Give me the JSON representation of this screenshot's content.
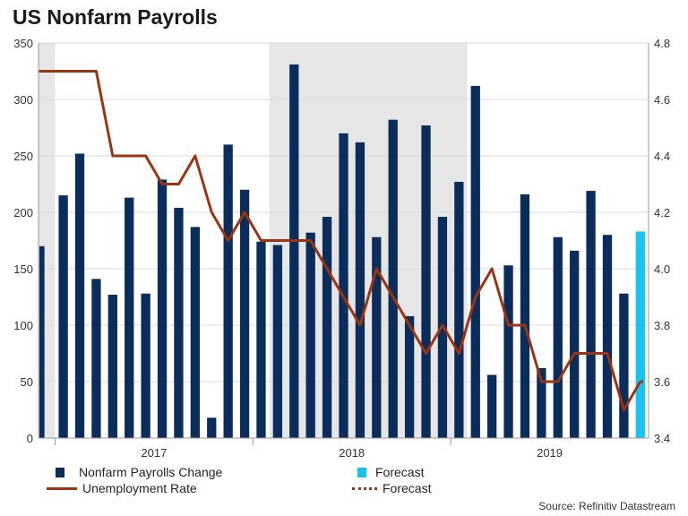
{
  "title": "US Nonfarm Payrolls",
  "source": "Source: Refinitiv Datastream",
  "colors": {
    "bar": "#0b2d5b",
    "forecast_bar": "#19c3f0",
    "line": "#9a3412",
    "shade": "#e6e6e6"
  },
  "legend": {
    "payrolls": "Nonfarm Payrolls Change",
    "forecast_bar": "Forecast",
    "unemployment": "Unemployment Rate",
    "forecast_line": "Forecast"
  },
  "chart_data": {
    "type": "bar",
    "x_year_labels": [
      "2017",
      "2018",
      "2019"
    ],
    "left_axis": {
      "ylim": [
        0,
        350
      ],
      "ticks": [
        "0",
        "50",
        "100",
        "150",
        "200",
        "250",
        "300",
        "350"
      ]
    },
    "right_axis": {
      "ylim": [
        3.4,
        4.8
      ],
      "ticks": [
        "3.4",
        "3.6",
        "3.8",
        "4.0",
        "4.2",
        "4.4",
        "4.6",
        "4.8"
      ]
    },
    "shaded_periods": [
      [
        0,
        0
      ],
      [
        14,
        25
      ]
    ],
    "series": [
      {
        "name": "Nonfarm Payrolls Change",
        "axis": "left",
        "values": [
          170,
          215,
          252,
          141,
          127,
          213,
          128,
          229,
          204,
          187,
          18,
          260,
          220,
          174,
          171,
          331,
          182,
          196,
          270,
          262,
          178,
          282,
          108,
          277,
          196,
          227,
          312,
          56,
          153,
          216,
          62,
          178,
          166,
          219,
          180,
          128
        ]
      },
      {
        "name": "Forecast",
        "axis": "left",
        "index": 36,
        "values": [
          183
        ]
      },
      {
        "name": "Unemployment Rate",
        "axis": "right",
        "values": [
          4.7,
          4.7,
          4.7,
          4.7,
          4.4,
          4.4,
          4.4,
          4.3,
          4.3,
          4.4,
          4.2,
          4.1,
          4.2,
          4.1,
          4.1,
          4.1,
          4.1,
          4.0,
          3.9,
          3.8,
          4.0,
          3.9,
          3.8,
          3.7,
          3.8,
          3.7,
          3.9,
          4.0,
          3.8,
          3.8,
          3.6,
          3.6,
          3.7,
          3.7,
          3.7,
          3.5,
          3.6
        ]
      },
      {
        "name": "Forecast",
        "axis": "right",
        "start_index": 36,
        "values": [
          3.6,
          3.6
        ]
      }
    ]
  }
}
